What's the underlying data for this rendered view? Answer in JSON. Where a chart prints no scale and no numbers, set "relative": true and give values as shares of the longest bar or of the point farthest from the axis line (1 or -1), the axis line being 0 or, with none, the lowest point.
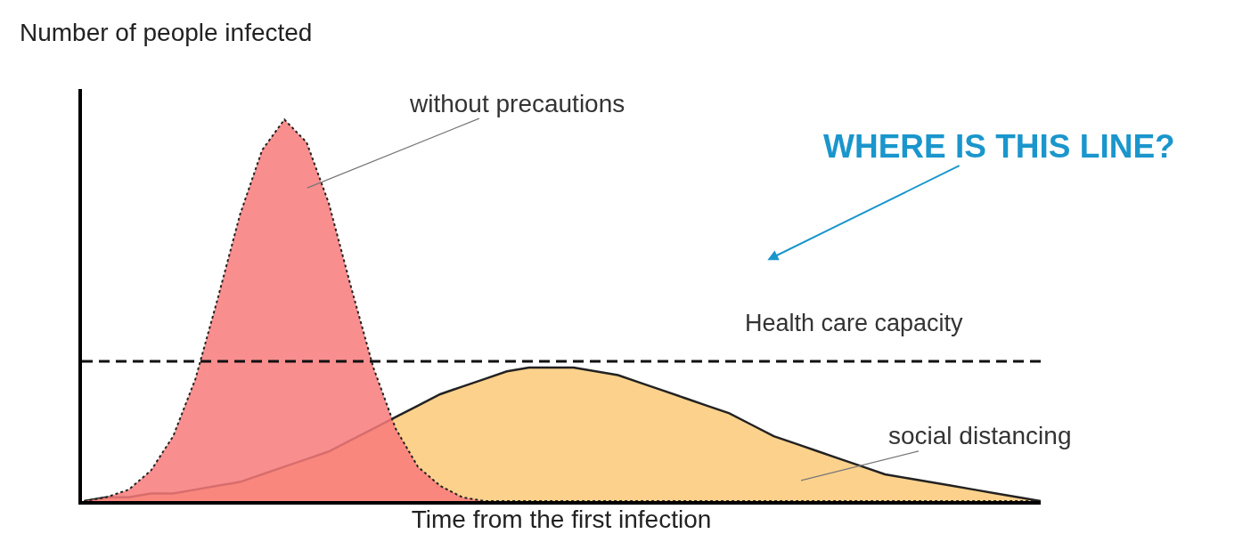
{
  "chart_data": {
    "type": "area",
    "relative": true,
    "xlabel": "Time from the first infection",
    "ylabel": "Number of people infected",
    "categories": [
      null,
      null,
      null,
      null,
      null,
      null,
      null,
      null,
      null,
      null,
      null,
      null,
      null,
      null,
      null,
      null,
      null,
      null,
      null,
      null,
      null,
      null,
      null,
      null,
      null,
      null,
      null,
      null,
      null,
      null,
      null,
      null,
      null,
      null,
      null,
      null,
      null,
      null,
      null,
      null,
      null,
      null,
      null,
      null
    ],
    "series": [
      {
        "name": "social distancing",
        "color": "#fcc978",
        "line_style": "solid",
        "values": [
          0,
          0.01,
          0.01,
          0.02,
          0.02,
          0.03,
          0.04,
          0.05,
          0.07,
          0.09,
          0.11,
          0.13,
          0.16,
          0.19,
          0.22,
          0.25,
          0.28,
          0.3,
          0.32,
          0.34,
          0.35,
          0.35,
          0.35,
          0.34,
          0.33,
          0.31,
          0.29,
          0.27,
          0.25,
          0.23,
          0.2,
          0.17,
          0.15,
          0.13,
          0.11,
          0.09,
          0.07,
          0.06,
          0.05,
          0.04,
          0.03,
          0.02,
          0.01,
          0
        ]
      },
      {
        "name": "without precautions",
        "color": "#f87a7a",
        "line_style": "dotted",
        "values": [
          0,
          0.01,
          0.03,
          0.08,
          0.17,
          0.32,
          0.53,
          0.75,
          0.92,
          1,
          0.94,
          0.78,
          0.56,
          0.35,
          0.19,
          0.09,
          0.04,
          0.01,
          0,
          0,
          0,
          0,
          0,
          0,
          0,
          0,
          0,
          0,
          0,
          0,
          0,
          0,
          0,
          0,
          0,
          0,
          0,
          0,
          0,
          0,
          0,
          0,
          0,
          0
        ]
      }
    ],
    "ref_lines": [
      {
        "axis": "y",
        "value": 0.366,
        "label": "Health care capacity",
        "line_style": "dashed"
      }
    ],
    "annotations": [
      "WHERE IS THIS LINE?"
    ],
    "grid": false,
    "legend": false
  }
}
